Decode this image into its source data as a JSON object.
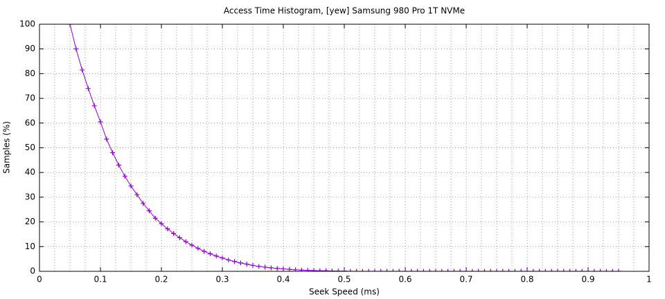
{
  "chart_data": {
    "type": "line",
    "title": "Access Time Histogram, [yew] Samsung 980 Pro 1T NVMe",
    "x_label": "Seek Speed (ms)",
    "y_label": "Samples (%)",
    "x": [
      0.05,
      0.06,
      0.07,
      0.08,
      0.09,
      0.1,
      0.11,
      0.12,
      0.13,
      0.14,
      0.15,
      0.16,
      0.17,
      0.18,
      0.19,
      0.2,
      0.21,
      0.22,
      0.23,
      0.24,
      0.25,
      0.26,
      0.27,
      0.28,
      0.29,
      0.3,
      0.31,
      0.32,
      0.33,
      0.34,
      0.35,
      0.36,
      0.37,
      0.38,
      0.39,
      0.4,
      0.41,
      0.42,
      0.43,
      0.44,
      0.45,
      0.46,
      0.47,
      0.48,
      0.49,
      0.5,
      0.51,
      0.52,
      0.53,
      0.54,
      0.55,
      0.56,
      0.57,
      0.58,
      0.59,
      0.6,
      0.61,
      0.62,
      0.63,
      0.64,
      0.65,
      0.66,
      0.67,
      0.68,
      0.69,
      0.7,
      0.71,
      0.72,
      0.73,
      0.74,
      0.75,
      0.76,
      0.77,
      0.78,
      0.79,
      0.8,
      0.81,
      0.82,
      0.83,
      0.84,
      0.85,
      0.86,
      0.87,
      0.88,
      0.89,
      0.9,
      0.91,
      0.92,
      0.93,
      0.94,
      0.95
    ],
    "series": [
      {
        "color": "#9400d3",
        "values": [
          100,
          90,
          81.5,
          74,
          67,
          60.5,
          53.5,
          48,
          43,
          38.5,
          34.5,
          31,
          27.5,
          24.5,
          21.5,
          19.3,
          17.2,
          15.3,
          13.6,
          12,
          10.6,
          9.3,
          8.1,
          7.1,
          6.2,
          5.4,
          4.6,
          4,
          3.4,
          2.9,
          2.4,
          2,
          1.7,
          1.4,
          1.2,
          1,
          0.8,
          0.6,
          0.5,
          0.4,
          0.3,
          0.25,
          0.2,
          0.15,
          0.1,
          0.1,
          0,
          0,
          0,
          0,
          0,
          0,
          0,
          0,
          0,
          0,
          0,
          0,
          0,
          0,
          0,
          0,
          0,
          0,
          0,
          0,
          0,
          0,
          0,
          0,
          0,
          0,
          0,
          0,
          0,
          0,
          0,
          0,
          0,
          0,
          0,
          0,
          0,
          0,
          0,
          0,
          0,
          0,
          0,
          0,
          0
        ]
      }
    ],
    "xlim": [
      0,
      1
    ],
    "xticks": [
      0,
      0.1,
      0.2,
      0.3,
      0.4,
      0.5,
      0.6,
      0.7,
      0.8,
      0.9,
      1
    ],
    "ylim": [
      0,
      100
    ],
    "yticks": [
      0,
      10,
      20,
      30,
      40,
      50,
      60,
      70,
      80,
      90,
      100
    ],
    "grid": true
  }
}
